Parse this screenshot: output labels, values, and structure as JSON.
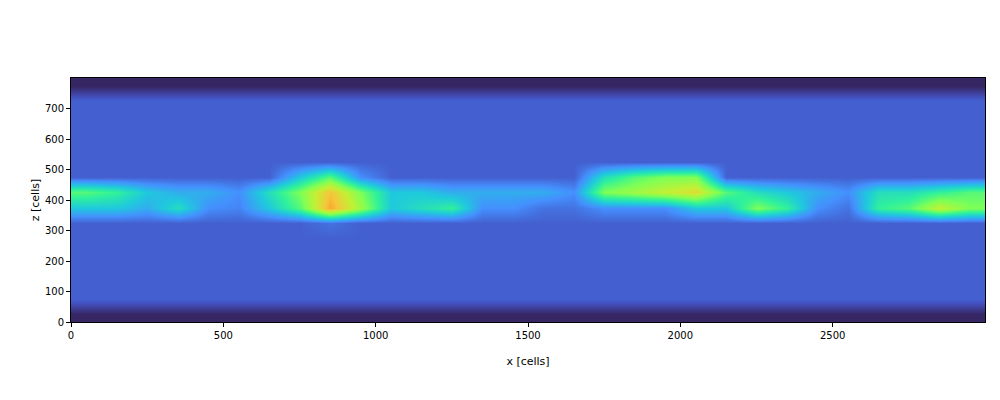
{
  "chart_data": {
    "type": "heatmap",
    "x_label": "x [cells]",
    "y_label": "z [cells]",
    "xlim": [
      0,
      3000
    ],
    "ylim": [
      0,
      800
    ],
    "xticks": [
      0,
      500,
      1000,
      1500,
      2000,
      2500
    ],
    "yticks": [
      0,
      100,
      200,
      300,
      400,
      500,
      600,
      700
    ],
    "zlim": [
      0,
      1
    ],
    "x": [
      50,
      150,
      250,
      350,
      450,
      550,
      650,
      750,
      850,
      950,
      1050,
      1150,
      1250,
      1350,
      1450,
      1550,
      1650,
      1750,
      1850,
      1950,
      2050,
      2150,
      2250,
      2350,
      2450,
      2550,
      2650,
      2750,
      2850,
      2950
    ],
    "y": [
      25,
      75,
      125,
      175,
      225,
      275,
      325,
      375,
      425,
      475,
      525,
      575,
      625,
      675,
      725,
      775
    ],
    "cells": [
      [
        0.03,
        0.03,
        0.03,
        0.03,
        0.03,
        0.03,
        0.03,
        0.03,
        0.03,
        0.03,
        0.03,
        0.03,
        0.03,
        0.03,
        0.03,
        0.03,
        0.03,
        0.03,
        0.03,
        0.03,
        0.03,
        0.03,
        0.03,
        0.03,
        0.03,
        0.03,
        0.03,
        0.03,
        0.03,
        0.03
      ],
      [
        0.12,
        0.12,
        0.12,
        0.12,
        0.12,
        0.12,
        0.12,
        0.12,
        0.12,
        0.12,
        0.12,
        0.12,
        0.12,
        0.12,
        0.12,
        0.12,
        0.12,
        0.12,
        0.12,
        0.12,
        0.12,
        0.12,
        0.12,
        0.12,
        0.12,
        0.12,
        0.12,
        0.12,
        0.12,
        0.12
      ],
      [
        0.12,
        0.12,
        0.12,
        0.12,
        0.12,
        0.12,
        0.12,
        0.12,
        0.12,
        0.12,
        0.12,
        0.12,
        0.12,
        0.12,
        0.12,
        0.12,
        0.12,
        0.12,
        0.12,
        0.12,
        0.12,
        0.12,
        0.12,
        0.12,
        0.12,
        0.12,
        0.12,
        0.12,
        0.12,
        0.12
      ],
      [
        0.12,
        0.12,
        0.12,
        0.12,
        0.12,
        0.12,
        0.12,
        0.12,
        0.12,
        0.12,
        0.12,
        0.12,
        0.12,
        0.12,
        0.12,
        0.12,
        0.12,
        0.12,
        0.12,
        0.12,
        0.12,
        0.12,
        0.12,
        0.12,
        0.12,
        0.12,
        0.12,
        0.12,
        0.12,
        0.12
      ],
      [
        0.12,
        0.12,
        0.12,
        0.12,
        0.12,
        0.12,
        0.12,
        0.12,
        0.12,
        0.12,
        0.12,
        0.12,
        0.12,
        0.12,
        0.12,
        0.12,
        0.12,
        0.12,
        0.12,
        0.12,
        0.12,
        0.12,
        0.12,
        0.12,
        0.12,
        0.12,
        0.12,
        0.12,
        0.12,
        0.12
      ],
      [
        0.12,
        0.12,
        0.12,
        0.12,
        0.12,
        0.12,
        0.12,
        0.12,
        0.12,
        0.12,
        0.12,
        0.12,
        0.12,
        0.12,
        0.12,
        0.12,
        0.12,
        0.12,
        0.12,
        0.12,
        0.12,
        0.12,
        0.12,
        0.12,
        0.12,
        0.12,
        0.12,
        0.12,
        0.12,
        0.12
      ],
      [
        0.12,
        0.12,
        0.12,
        0.12,
        0.12,
        0.12,
        0.12,
        0.12,
        0.15,
        0.12,
        0.12,
        0.12,
        0.12,
        0.12,
        0.12,
        0.12,
        0.12,
        0.12,
        0.12,
        0.12,
        0.12,
        0.12,
        0.12,
        0.12,
        0.12,
        0.12,
        0.12,
        0.12,
        0.12,
        0.12
      ],
      [
        0.3,
        0.3,
        0.25,
        0.35,
        0.2,
        0.18,
        0.3,
        0.45,
        0.75,
        0.55,
        0.3,
        0.35,
        0.4,
        0.2,
        0.2,
        0.15,
        0.15,
        0.2,
        0.2,
        0.2,
        0.3,
        0.3,
        0.5,
        0.4,
        0.2,
        0.15,
        0.4,
        0.45,
        0.6,
        0.5
      ],
      [
        0.45,
        0.4,
        0.3,
        0.25,
        0.25,
        0.2,
        0.35,
        0.5,
        0.7,
        0.5,
        0.3,
        0.3,
        0.25,
        0.25,
        0.25,
        0.25,
        0.2,
        0.5,
        0.55,
        0.6,
        0.65,
        0.45,
        0.35,
        0.3,
        0.25,
        0.2,
        0.35,
        0.35,
        0.4,
        0.45
      ],
      [
        0.12,
        0.12,
        0.12,
        0.12,
        0.12,
        0.12,
        0.12,
        0.3,
        0.45,
        0.2,
        0.12,
        0.12,
        0.12,
        0.12,
        0.12,
        0.12,
        0.12,
        0.35,
        0.45,
        0.5,
        0.5,
        0.12,
        0.12,
        0.12,
        0.12,
        0.12,
        0.12,
        0.12,
        0.12,
        0.12
      ],
      [
        0.12,
        0.12,
        0.12,
        0.12,
        0.12,
        0.12,
        0.12,
        0.12,
        0.12,
        0.12,
        0.12,
        0.12,
        0.12,
        0.12,
        0.12,
        0.12,
        0.12,
        0.12,
        0.12,
        0.12,
        0.12,
        0.12,
        0.12,
        0.12,
        0.12,
        0.12,
        0.12,
        0.12,
        0.12,
        0.12
      ],
      [
        0.12,
        0.12,
        0.12,
        0.12,
        0.12,
        0.12,
        0.12,
        0.12,
        0.12,
        0.12,
        0.12,
        0.12,
        0.12,
        0.12,
        0.12,
        0.12,
        0.12,
        0.12,
        0.12,
        0.12,
        0.12,
        0.12,
        0.12,
        0.12,
        0.12,
        0.12,
        0.12,
        0.12,
        0.12,
        0.12
      ],
      [
        0.12,
        0.12,
        0.12,
        0.12,
        0.12,
        0.12,
        0.12,
        0.12,
        0.12,
        0.12,
        0.12,
        0.12,
        0.12,
        0.12,
        0.12,
        0.12,
        0.12,
        0.12,
        0.12,
        0.12,
        0.12,
        0.12,
        0.12,
        0.12,
        0.12,
        0.12,
        0.12,
        0.12,
        0.12,
        0.12
      ],
      [
        0.12,
        0.12,
        0.12,
        0.12,
        0.12,
        0.12,
        0.12,
        0.12,
        0.12,
        0.12,
        0.12,
        0.12,
        0.12,
        0.12,
        0.12,
        0.12,
        0.12,
        0.12,
        0.12,
        0.12,
        0.12,
        0.12,
        0.12,
        0.12,
        0.12,
        0.12,
        0.12,
        0.12,
        0.12,
        0.12
      ],
      [
        0.12,
        0.12,
        0.12,
        0.12,
        0.12,
        0.12,
        0.12,
        0.12,
        0.12,
        0.12,
        0.12,
        0.12,
        0.12,
        0.12,
        0.12,
        0.12,
        0.12,
        0.12,
        0.12,
        0.12,
        0.12,
        0.12,
        0.12,
        0.12,
        0.12,
        0.12,
        0.12,
        0.12,
        0.12,
        0.12
      ],
      [
        0.03,
        0.03,
        0.03,
        0.03,
        0.03,
        0.03,
        0.03,
        0.03,
        0.03,
        0.03,
        0.03,
        0.03,
        0.03,
        0.03,
        0.03,
        0.03,
        0.03,
        0.03,
        0.03,
        0.03,
        0.03,
        0.03,
        0.03,
        0.03,
        0.03,
        0.03,
        0.03,
        0.03,
        0.03,
        0.03
      ]
    ]
  }
}
